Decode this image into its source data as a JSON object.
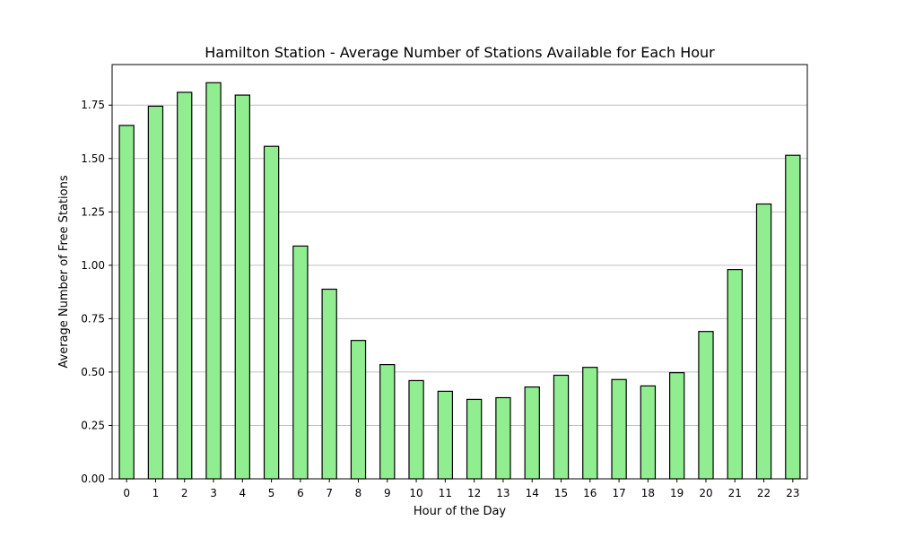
{
  "chart_data": {
    "type": "bar",
    "title": "Hamilton Station - Average Number of Stations Available for Each Hour",
    "xlabel": "Hour of the Day",
    "ylabel": "Average Number of Free Stations",
    "categories": [
      "0",
      "1",
      "2",
      "3",
      "4",
      "5",
      "6",
      "7",
      "8",
      "9",
      "10",
      "11",
      "12",
      "13",
      "14",
      "15",
      "16",
      "17",
      "18",
      "19",
      "20",
      "21",
      "22",
      "23"
    ],
    "values": [
      1.655,
      1.745,
      1.81,
      1.855,
      1.797,
      1.557,
      1.09,
      0.888,
      0.648,
      0.535,
      0.46,
      0.41,
      0.372,
      0.38,
      0.43,
      0.485,
      0.522,
      0.465,
      0.435,
      0.497,
      0.69,
      0.98,
      1.287,
      1.515
    ],
    "yticks": [
      "0.00",
      "0.25",
      "0.50",
      "0.75",
      "1.00",
      "1.25",
      "1.50",
      "1.75"
    ],
    "ylim": [
      0,
      1.94
    ],
    "grid": "y-axis",
    "bar_color": "#90ee90",
    "bar_edge_color": "#000000",
    "grid_color": "#c0c0c0"
  }
}
